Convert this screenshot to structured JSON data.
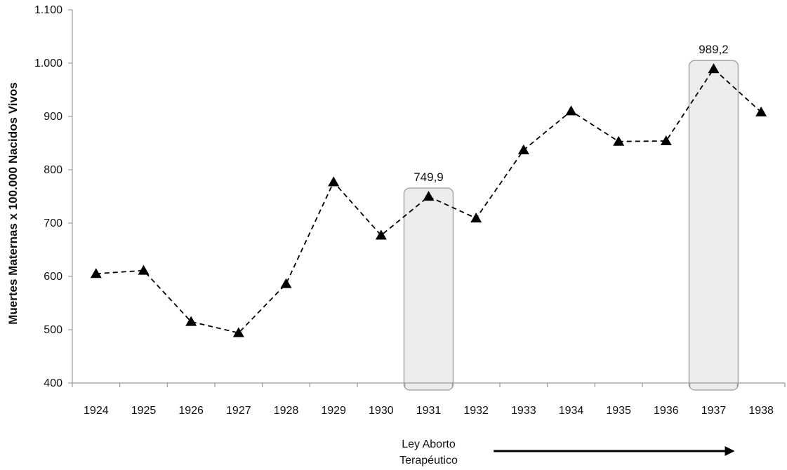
{
  "chart_data": {
    "type": "line",
    "title": "",
    "xlabel": "",
    "ylabel": "Muertes Maternas x 100.000 Nacidos Vivos",
    "ylim": [
      400,
      1100
    ],
    "yticks": [
      400,
      500,
      600,
      700,
      800,
      900,
      1000,
      1100
    ],
    "ytick_labels": [
      "400",
      "500",
      "600",
      "700",
      "800",
      "900",
      "1.000",
      "1.100"
    ],
    "categories": [
      "1924",
      "1925",
      "1926",
      "1927",
      "1928",
      "1929",
      "1930",
      "1931",
      "1932",
      "1933",
      "1934",
      "1935",
      "1936",
      "1937",
      "1938"
    ],
    "series": [
      {
        "values": [
          605,
          611,
          515,
          494,
          586,
          777,
          677,
          749.9,
          709,
          837,
          910,
          853,
          854,
          989.2,
          908
        ],
        "line_style": "dashed",
        "marker": "triangle",
        "color": "#000000"
      }
    ],
    "grid": false,
    "legend": "none",
    "highlights": [
      {
        "category": "1931",
        "label": "749,9",
        "color": "#ececec"
      },
      {
        "category": "1937",
        "label": "989,2",
        "color": "#ececec"
      }
    ],
    "annotation": {
      "lines": [
        "Ley Aborto",
        "Terapéutico"
      ],
      "arrow_from": "1932",
      "arrow_to": "1937"
    }
  }
}
